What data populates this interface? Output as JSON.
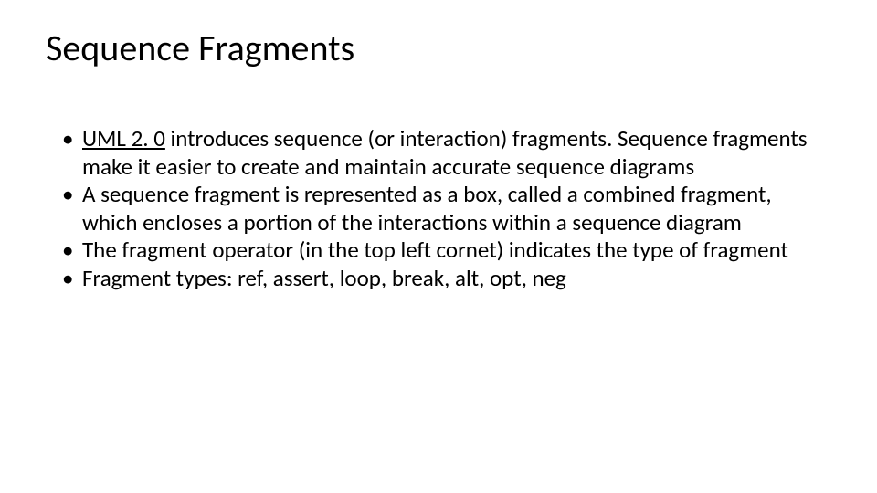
{
  "slide": {
    "title": "Sequence Fragments",
    "title_fontsize": 40,
    "body_fontsize": 25,
    "background_color": "#ffffff",
    "text_color": "#000000",
    "bullets": [
      {
        "link_text": "UML 2. 0",
        "rest_text": " introduces sequence (or interaction) fragments. Sequence fragments make it easier to create and maintain accurate sequence diagrams"
      },
      {
        "text": "A sequence fragment is represented as a box, called a combined fragment, which encloses a portion of the interactions within a sequence diagram"
      },
      {
        "text": "The fragment operator (in the top left cornet) indicates the type of fragment"
      },
      {
        "text": "Fragment types: ref, assert, loop, break, alt, opt, neg"
      }
    ]
  }
}
